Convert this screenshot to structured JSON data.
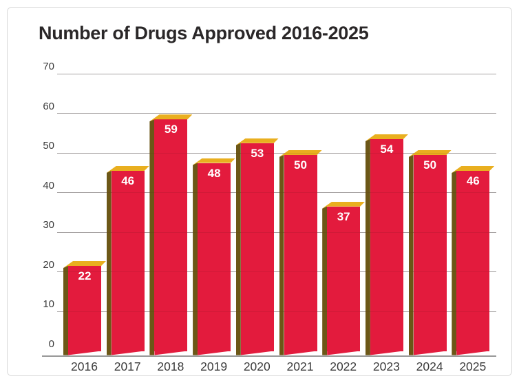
{
  "chart_data": {
    "type": "bar",
    "title": "Number of Drugs Approved 2016-2025",
    "categories": [
      "2016",
      "2017",
      "2018",
      "2019",
      "2020",
      "2021",
      "2022",
      "2023",
      "2024",
      "2025"
    ],
    "values": [
      22,
      46,
      59,
      48,
      53,
      50,
      37,
      54,
      50,
      46
    ],
    "xlabel": "",
    "ylabel": "",
    "ylim": [
      0,
      70
    ],
    "yticks": [
      0,
      10,
      20,
      30,
      40,
      50,
      60,
      70
    ],
    "grid": true,
    "legend": false,
    "bar_value_labels": true,
    "style": "3d-extruded-bars",
    "colors": {
      "bar_front": "#e31b3d",
      "bar_top": "#e9af1f",
      "bar_side": "#6c5717",
      "gridline": "#b3b3b3",
      "axis_line": "#989898",
      "tick_label": "#3b3b3b",
      "title": "#2a2728",
      "value_label": "#ffffff",
      "card_border": "#d9d9d9",
      "background": "#ffffff"
    }
  }
}
